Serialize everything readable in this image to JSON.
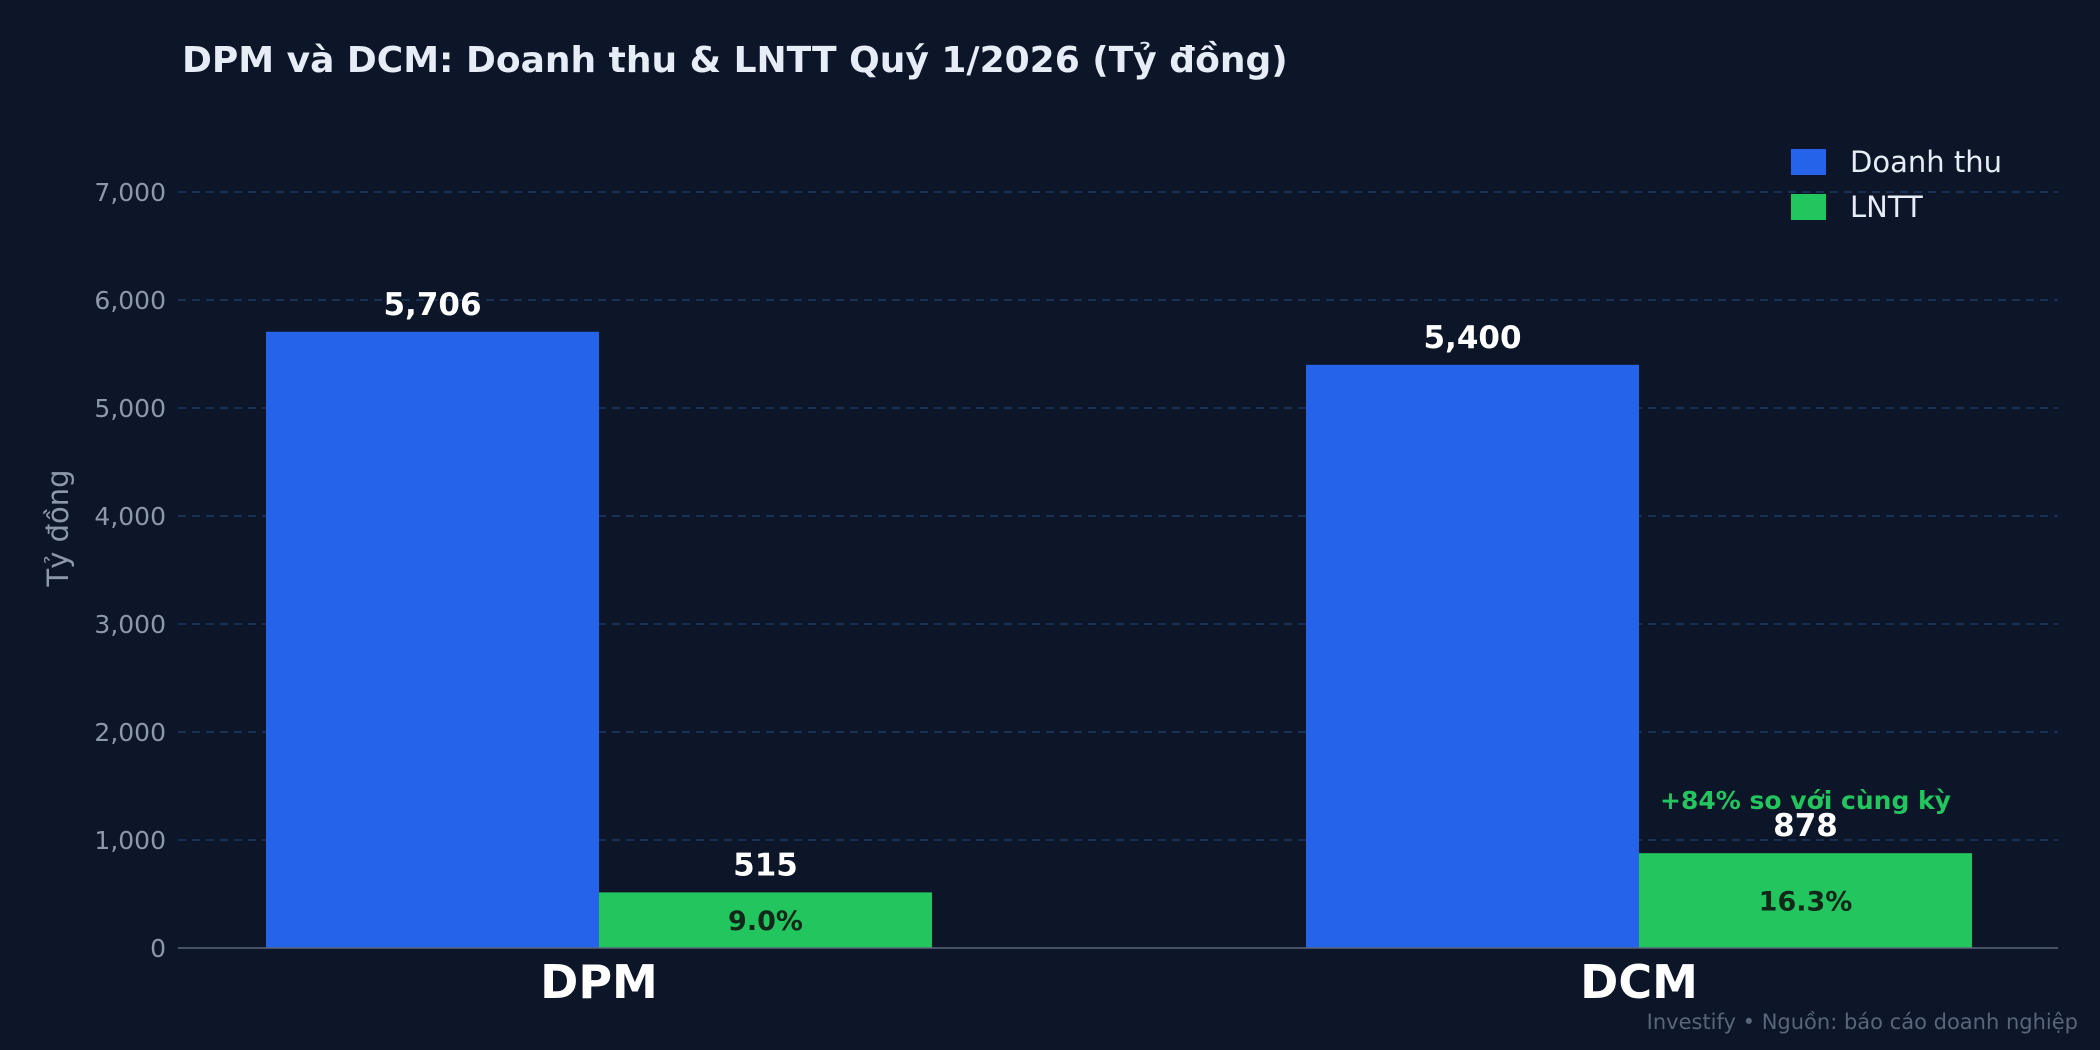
{
  "chart_data": {
    "type": "bar",
    "title": "DPM và DCM: Doanh thu & LNTT Quý 1/2026  (Tỷ đồng)",
    "ylabel": "Tỷ đồng",
    "xlabel": "",
    "categories": [
      "DPM",
      "DCM"
    ],
    "ylim": [
      0,
      7000
    ],
    "yticks": [
      0,
      1000,
      2000,
      3000,
      4000,
      5000,
      6000,
      7000
    ],
    "ytick_labels": [
      "0",
      "1,000",
      "2,000",
      "3,000",
      "4,000",
      "5,000",
      "6,000",
      "7,000"
    ],
    "grid": true,
    "legend_position": "top-right",
    "series": [
      {
        "name": "Doanh thu",
        "color": "#2563eb",
        "values": [
          5706,
          5400
        ],
        "value_labels": [
          "5,706",
          "5,400"
        ]
      },
      {
        "name": "LNTT",
        "color": "#22c55e",
        "values": [
          515,
          878
        ],
        "value_labels": [
          "515",
          "878"
        ],
        "inner_labels": [
          "9.0%",
          "16.3%"
        ]
      }
    ],
    "annotations": [
      {
        "category": "DCM",
        "series": "LNTT",
        "text": "+84% so với cùng kỳ",
        "color": "#22c55e"
      }
    ]
  },
  "footer": "Investify  •  Nguồn: báo cáo doanh nghiệp"
}
